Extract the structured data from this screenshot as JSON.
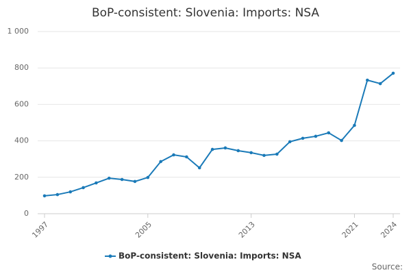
{
  "chart_data": {
    "type": "line",
    "title": "BoP-consistent: Slovenia: Imports: NSA",
    "x": [
      1997,
      1998,
      1999,
      2000,
      2001,
      2002,
      2003,
      2004,
      2005,
      2006,
      2007,
      2008,
      2009,
      2010,
      2011,
      2012,
      2013,
      2014,
      2015,
      2016,
      2017,
      2018,
      2019,
      2020,
      2021,
      2022,
      2023,
      2024
    ],
    "series": [
      {
        "name": "BoP-consistent: Slovenia: Imports: NSA",
        "color": "#1a7ab8",
        "values": [
          98,
          105,
          120,
          143,
          169,
          195,
          188,
          177,
          199,
          286,
          323,
          312,
          252,
          353,
          361,
          346,
          335,
          320,
          327,
          395,
          414,
          425,
          444,
          402,
          485,
          733,
          714,
          771
        ]
      }
    ],
    "xlim": [
      1997,
      2024
    ],
    "xticks": [
      1997,
      2005,
      2013,
      2021,
      2024
    ],
    "ylim": [
      0,
      1000
    ],
    "yticks": [
      0,
      200,
      400,
      600,
      800,
      {
        "value": 1000,
        "label": "1 000"
      }
    ],
    "grid": true,
    "legend": "bottom",
    "source": "Source:"
  }
}
